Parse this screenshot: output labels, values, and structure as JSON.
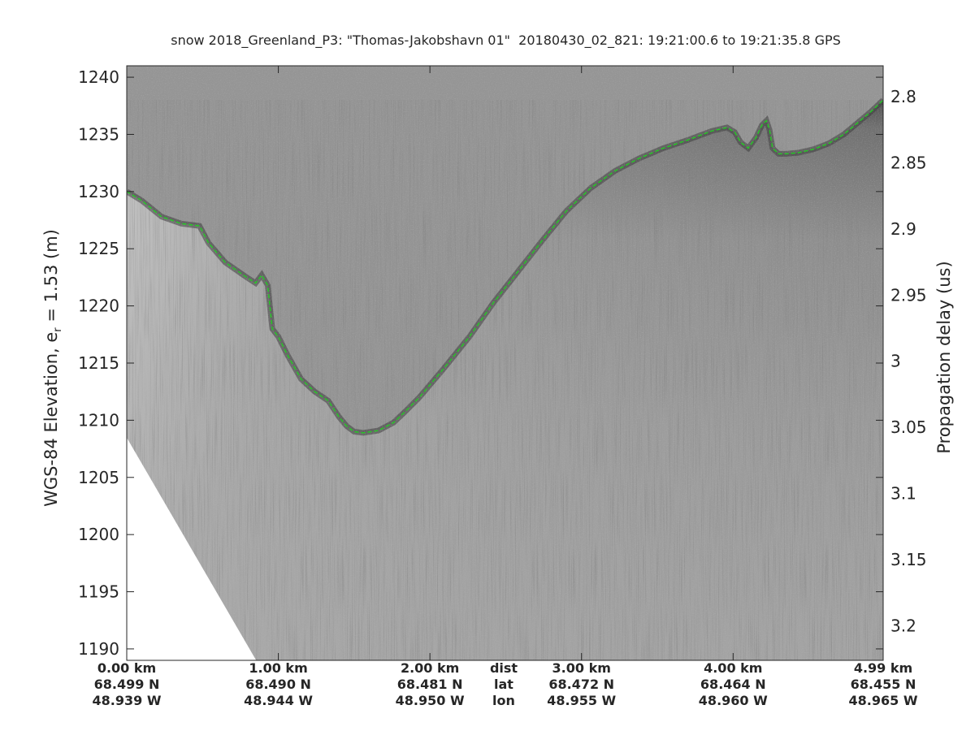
{
  "chart_data": {
    "type": "radargram",
    "title": "snow 2018_Greenland_P3: \"Thomas-Jakobshavn 01\"  20180430_02_821: 19:21:00.6 to 19:21:35.8 GPS",
    "ylabel_left_main": "WGS-84 Elevation, e",
    "ylabel_left_sub": "r",
    "ylabel_left_tail": " = 1.53 (m)",
    "ylabel_right": "Propagation delay (us)",
    "xlim_km": [
      0,
      4.99
    ],
    "ylim_left": [
      1189,
      1241
    ],
    "ylim_right": [
      2.7767,
      3.2261
    ],
    "yticks_left": [
      "1190",
      "1195",
      "1200",
      "1205",
      "1210",
      "1215",
      "1220",
      "1225",
      "1230",
      "1235",
      "1240"
    ],
    "yticks_right": [
      "2.8",
      "2.85",
      "2.9",
      "2.95",
      "3",
      "3.05",
      "3.1",
      "3.15",
      "3.2"
    ],
    "xticks": [
      {
        "dist": "0.00 km",
        "lat": "68.499 N",
        "lon": "48.939 W"
      },
      {
        "dist": "1.00 km",
        "lat": "68.490 N",
        "lon": "48.944 W"
      },
      {
        "dist": "2.00 km",
        "lat": "68.481 N",
        "lon": "48.950 W"
      },
      {
        "dist": "3.00 km",
        "lat": "68.472 N",
        "lon": "48.955 W"
      },
      {
        "dist": "4.00 km",
        "lat": "68.464 N",
        "lon": "48.960 W"
      },
      {
        "dist": "4.99 km",
        "lat": "68.455 N",
        "lon": "48.965 W"
      }
    ],
    "xtick_labels": {
      "dist": "dist",
      "lat": "lat",
      "lon": "lon"
    },
    "surface_track": {
      "name": "surface",
      "color": "#1fd21f",
      "x_km": [
        0.0,
        0.1,
        0.23,
        0.36,
        0.48,
        0.54,
        0.65,
        0.78,
        0.85,
        0.89,
        0.93,
        0.96,
        1.0,
        1.06,
        1.15,
        1.24,
        1.33,
        1.4,
        1.45,
        1.5,
        1.56,
        1.66,
        1.76,
        1.84,
        1.93,
        2.09,
        2.26,
        2.42,
        2.58,
        2.74,
        2.9,
        3.06,
        3.22,
        3.38,
        3.54,
        3.7,
        3.86,
        3.96,
        4.01,
        4.05,
        4.1,
        4.15,
        4.19,
        4.22,
        4.24,
        4.26,
        4.3,
        4.35,
        4.43,
        4.53,
        4.63,
        4.73,
        4.83,
        4.91,
        4.99
      ],
      "elevation_m": [
        1230.0,
        1229.2,
        1227.8,
        1227.2,
        1227.0,
        1225.5,
        1223.8,
        1222.6,
        1222.0,
        1222.7,
        1221.8,
        1218.0,
        1217.3,
        1215.7,
        1213.6,
        1212.5,
        1211.7,
        1210.3,
        1209.5,
        1209.0,
        1208.9,
        1209.1,
        1209.8,
        1210.8,
        1212.0,
        1214.5,
        1217.3,
        1220.3,
        1223.0,
        1225.7,
        1228.3,
        1230.3,
        1231.8,
        1232.9,
        1233.8,
        1234.5,
        1235.3,
        1235.6,
        1235.2,
        1234.3,
        1233.8,
        1234.7,
        1235.8,
        1236.2,
        1235.4,
        1233.8,
        1233.3,
        1233.3,
        1233.4,
        1233.7,
        1234.2,
        1235.0,
        1236.1,
        1237.0,
        1238.0
      ]
    },
    "data_edge": {
      "x_km": [
        0.0,
        0.86,
        0.87,
        4.99
      ],
      "elevation_m": [
        1208.6,
        1189.0,
        1189.0,
        1189.0
      ]
    },
    "image_colormap": "gray",
    "grid": false
  }
}
